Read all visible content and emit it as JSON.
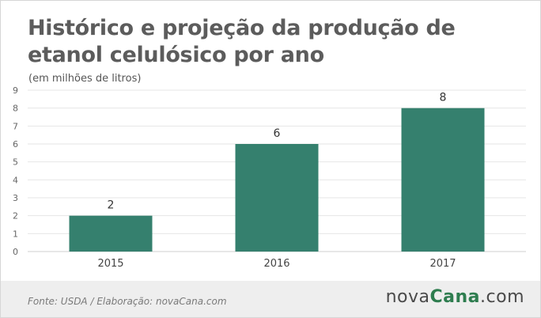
{
  "title": "Histórico e projeção da produção de etanol celulósico por ano",
  "subtitle": "(em milhões de litros)",
  "footer": {
    "source": "Fonte:  USDA / Elaboração:  novaCana.com",
    "logo_part_a": "nova",
    "logo_part_b": "Cana",
    "logo_part_c": ".com"
  },
  "colors": {
    "bar": "#35806e",
    "grid": "#e6e6e6",
    "axis": "#cfcfcf",
    "footer_bg": "#eeeeee"
  },
  "chart_data": {
    "type": "bar",
    "title": "Histórico e projeção da produção de etanol celulósico por ano",
    "subtitle": "(em milhões de litros)",
    "categories": [
      "2015",
      "2016",
      "2017"
    ],
    "values": [
      2,
      6,
      8
    ],
    "data_labels": [
      "2",
      "6",
      "8"
    ],
    "yticks": [
      "0",
      "1",
      "2",
      "3",
      "4",
      "5",
      "6",
      "7",
      "8",
      "9"
    ],
    "ylim": [
      0,
      9
    ],
    "grid": true,
    "xlabel": "",
    "ylabel": ""
  }
}
